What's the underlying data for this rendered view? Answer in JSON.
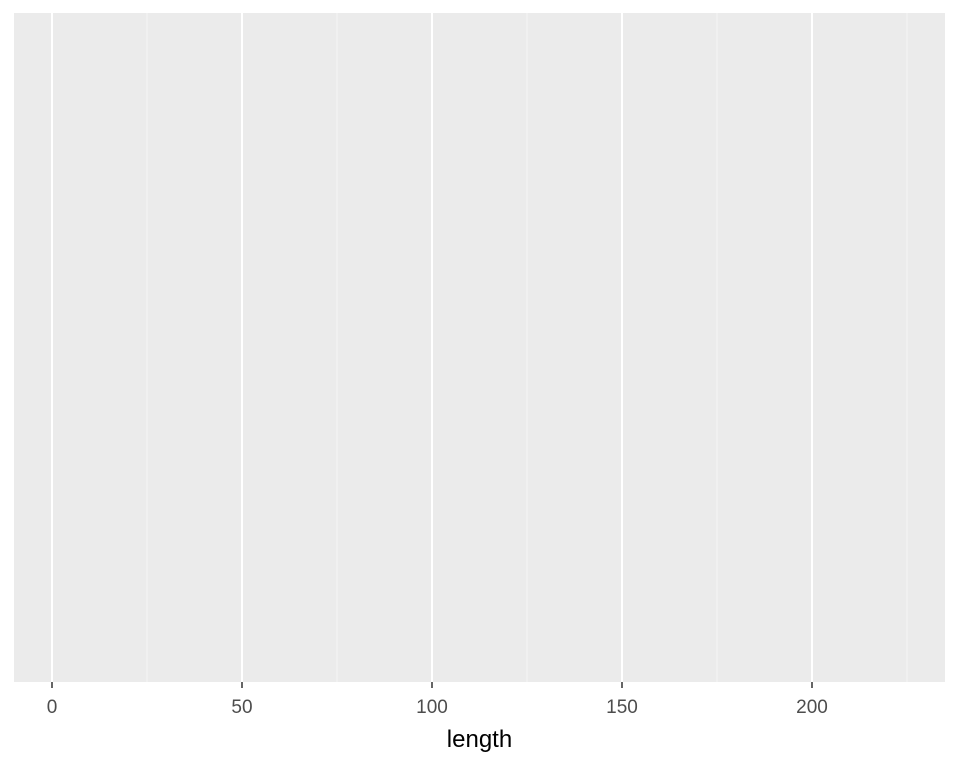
{
  "chart_data": {
    "type": "scatter",
    "title": "",
    "xlabel": "length",
    "ylabel": "",
    "xlim": [
      -10,
      235
    ],
    "x_ticks": [
      0,
      50,
      100,
      150,
      200
    ],
    "x_tick_labels": [
      "0",
      "50",
      "100",
      "150",
      "200"
    ],
    "x_minor_ticks": [
      25,
      75,
      125,
      175,
      225
    ],
    "y_ticks": [],
    "series": [],
    "grid": true,
    "legend": "none",
    "colors": {
      "panel_background": "#EBEBEB",
      "grid_major": "#FFFFFF",
      "grid_minor": "#F5F5F5",
      "tick_mark": "#333333",
      "tick_label": "#4D4D4D",
      "axis_title": "#000000",
      "page_background": "#FFFFFF"
    }
  }
}
